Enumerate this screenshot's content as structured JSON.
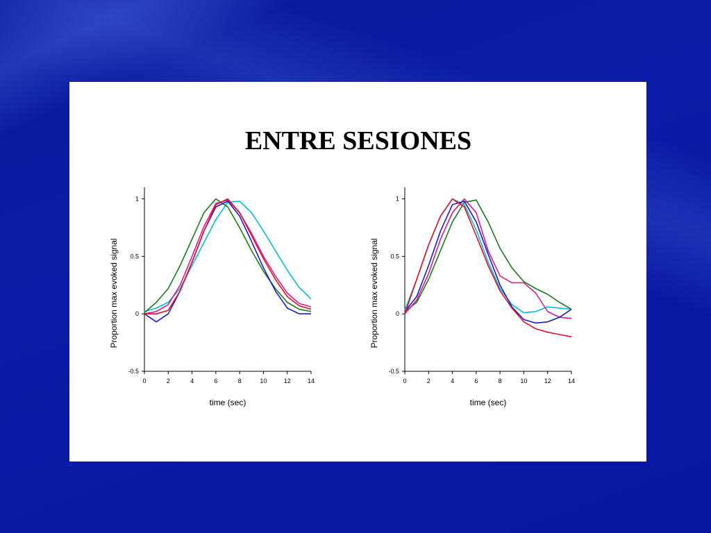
{
  "title": "ENTRE SESIONES",
  "chart_data": [
    {
      "type": "line",
      "ylabel": "Proportion max evoked signal",
      "xlabel": "time (sec)",
      "x": [
        0,
        1,
        2,
        3,
        4,
        5,
        6,
        7,
        8,
        9,
        10,
        11,
        12,
        13,
        14
      ],
      "xlim": [
        0,
        14
      ],
      "xticks": [
        0,
        2,
        4,
        6,
        8,
        10,
        12,
        14
      ],
      "ylim": [
        -0.5,
        1.1
      ],
      "yticks": [
        -0.5,
        0,
        0.5,
        1
      ],
      "series": [
        {
          "color": "#00bcd4",
          "values": [
            0.02,
            0.05,
            0.1,
            0.22,
            0.42,
            0.62,
            0.82,
            0.97,
            0.98,
            0.88,
            0.72,
            0.55,
            0.38,
            0.23,
            0.13
          ]
        },
        {
          "color": "#1a7a1a",
          "values": [
            0.01,
            0.1,
            0.22,
            0.42,
            0.65,
            0.88,
            1.0,
            0.93,
            0.75,
            0.55,
            0.37,
            0.22,
            0.1,
            0.04,
            0.02
          ]
        },
        {
          "color": "#d81b8c",
          "values": [
            0,
            0.02,
            0.08,
            0.25,
            0.5,
            0.76,
            0.96,
            0.99,
            0.88,
            0.7,
            0.5,
            0.33,
            0.18,
            0.09,
            0.06
          ]
        },
        {
          "color": "#1a1ad0",
          "values": [
            0,
            -0.07,
            0,
            0.2,
            0.45,
            0.72,
            0.93,
            0.98,
            0.85,
            0.63,
            0.4,
            0.2,
            0.05,
            0,
            0
          ]
        },
        {
          "color": "#e0102a",
          "values": [
            0,
            0,
            0.03,
            0.2,
            0.45,
            0.72,
            0.95,
            1.0,
            0.88,
            0.68,
            0.48,
            0.3,
            0.15,
            0.07,
            0.04
          ]
        }
      ]
    },
    {
      "type": "line",
      "ylabel": "Proportion max evoked signal",
      "xlabel": "time (sec)",
      "x": [
        0,
        1,
        2,
        3,
        4,
        5,
        6,
        7,
        8,
        9,
        10,
        11,
        12,
        13,
        14
      ],
      "xlim": [
        0,
        14
      ],
      "xticks": [
        0,
        2,
        4,
        6,
        8,
        10,
        12,
        14
      ],
      "ylim": [
        -0.5,
        1.1
      ],
      "yticks": [
        -0.5,
        0,
        0.5,
        1
      ],
      "series": [
        {
          "color": "#1a7a1a",
          "values": [
            0.02,
            0.1,
            0.3,
            0.55,
            0.8,
            0.97,
            0.99,
            0.8,
            0.57,
            0.4,
            0.28,
            0.22,
            0.17,
            0.1,
            0.04
          ]
        },
        {
          "color": "#00bcd4",
          "values": [
            0.03,
            0.3,
            0.6,
            0.85,
            1.0,
            0.95,
            0.73,
            0.45,
            0.22,
            0.08,
            0.01,
            0.02,
            0.06,
            0.05,
            0.04
          ]
        },
        {
          "color": "#d81b8c",
          "values": [
            0,
            0.12,
            0.35,
            0.65,
            0.88,
            1.0,
            0.88,
            0.55,
            0.33,
            0.27,
            0.27,
            0.18,
            0.02,
            -0.03,
            -0.04
          ]
        },
        {
          "color": "#1a1ad0",
          "values": [
            0.02,
            0.15,
            0.42,
            0.72,
            0.95,
            0.98,
            0.8,
            0.52,
            0.25,
            0.06,
            -0.05,
            -0.08,
            -0.07,
            -0.03,
            0.04
          ]
        },
        {
          "color": "#e0102a",
          "values": [
            0,
            0.3,
            0.6,
            0.85,
            1.0,
            0.93,
            0.68,
            0.42,
            0.2,
            0.05,
            -0.07,
            -0.13,
            -0.16,
            -0.18,
            -0.2
          ]
        }
      ]
    }
  ]
}
